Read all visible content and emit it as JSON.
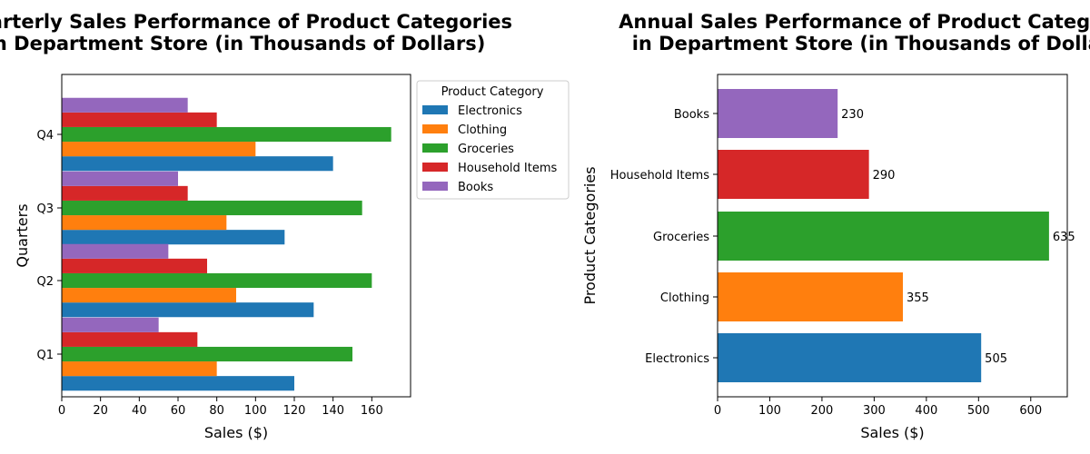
{
  "chart_data": [
    {
      "type": "bar",
      "orientation": "horizontal",
      "title": "Quarterly Sales Performance of Product Categories\nin Department Store (in Thousands of Dollars)",
      "xlabel": "Sales ($)",
      "ylabel": "Quarters",
      "categories": [
        "Q1",
        "Q2",
        "Q3",
        "Q4"
      ],
      "xlim": [
        0,
        180
      ],
      "xticks": [
        0,
        20,
        40,
        60,
        80,
        100,
        120,
        140,
        160
      ],
      "legend_title": "Product Category",
      "legend_position": "outside-top-right",
      "grid": false,
      "series": [
        {
          "name": "Electronics",
          "color": "#1f77b4",
          "values": [
            120,
            130,
            115,
            140
          ]
        },
        {
          "name": "Clothing",
          "color": "#ff7f0e",
          "values": [
            80,
            90,
            85,
            100
          ]
        },
        {
          "name": "Groceries",
          "color": "#2ca02c",
          "values": [
            150,
            160,
            155,
            170
          ]
        },
        {
          "name": "Household Items",
          "color": "#d62728",
          "values": [
            70,
            75,
            65,
            80
          ]
        },
        {
          "name": "Books",
          "color": "#9467bd",
          "values": [
            50,
            55,
            60,
            65
          ]
        }
      ]
    },
    {
      "type": "bar",
      "orientation": "horizontal",
      "title": "Annual Sales Performance of Product Categories\nin Department Store (in Thousands of Dollars)",
      "xlabel": "Sales ($)",
      "ylabel": "Product Categories",
      "categories": [
        "Electronics",
        "Clothing",
        "Groceries",
        "Household Items",
        "Books"
      ],
      "values": [
        505,
        355,
        635,
        290,
        230
      ],
      "colors": [
        "#1f77b4",
        "#ff7f0e",
        "#2ca02c",
        "#d62728",
        "#9467bd"
      ],
      "data_labels": [
        "505",
        "355",
        "635",
        "290",
        "230"
      ],
      "xlim": [
        0,
        670
      ],
      "xticks": [
        0,
        100,
        200,
        300,
        400,
        500,
        600
      ],
      "grid": false
    }
  ]
}
